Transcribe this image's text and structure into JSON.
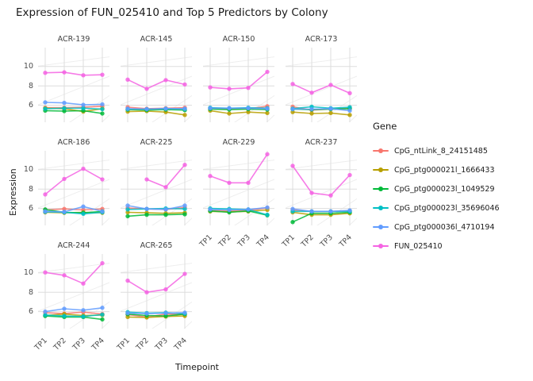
{
  "title": "Expression of FUN_025410 and Top 5 Predictors by Colony",
  "chart_data": {
    "type": "line",
    "faceted": true,
    "facet_layout": {
      "columns": 4,
      "rows": 3
    },
    "xlabel": "Timepoint",
    "ylabel": "Expression",
    "legend_title": "Gene",
    "legend_position": "right",
    "grid": true,
    "x_categories": [
      "TP1",
      "TP2",
      "TP3",
      "TP4"
    ],
    "y_major_ticks": [
      6,
      8,
      10
    ],
    "y_minor_ticks": [
      5,
      7,
      9,
      11
    ],
    "ylim": [
      4.25,
      11.95
    ],
    "series": [
      {
        "name": "CpG_ntLink_8_24151485",
        "color": "#F8766D"
      },
      {
        "name": "CpG_ptg000021l_1666433",
        "color": "#B79F00"
      },
      {
        "name": "CpG_ptg000023l_1049529",
        "color": "#00BA38"
      },
      {
        "name": "CpG_ptg000023l_35696046",
        "color": "#00BFC4"
      },
      {
        "name": "CpG_ptg000036l_4710194",
        "color": "#619CFF"
      },
      {
        "name": "FUN_025410",
        "color": "#F564E3"
      }
    ],
    "facets": [
      {
        "name": "ACR-139",
        "series_values": [
          [
            5.75,
            5.75,
            5.8,
            5.9
          ],
          [
            5.7,
            5.65,
            5.35,
            5.65
          ],
          [
            5.45,
            5.4,
            5.45,
            5.15
          ],
          [
            5.65,
            5.7,
            5.7,
            5.6
          ],
          [
            6.3,
            6.25,
            6.05,
            6.1
          ],
          [
            9.35,
            9.4,
            9.1,
            9.15
          ]
        ]
      },
      {
        "name": "ACR-145",
        "series_values": [
          [
            5.8,
            5.65,
            5.7,
            5.75
          ],
          [
            5.35,
            5.4,
            5.3,
            5.0
          ],
          [
            5.55,
            5.5,
            5.55,
            5.5
          ],
          [
            5.6,
            5.6,
            5.65,
            5.6
          ],
          [
            5.65,
            5.6,
            5.65,
            5.65
          ],
          [
            8.65,
            7.7,
            8.6,
            8.15
          ]
        ]
      },
      {
        "name": "ACR-150",
        "series_values": [
          [
            5.7,
            5.65,
            5.65,
            5.9
          ],
          [
            5.45,
            5.15,
            5.3,
            5.2
          ],
          [
            5.6,
            5.55,
            5.6,
            5.55
          ],
          [
            5.75,
            5.7,
            5.75,
            5.7
          ],
          [
            5.7,
            5.7,
            5.7,
            5.65
          ],
          [
            7.85,
            7.7,
            7.8,
            9.45
          ]
        ]
      },
      {
        "name": "ACR-173",
        "series_values": [
          [
            5.85,
            5.5,
            5.6,
            5.7
          ],
          [
            5.3,
            5.15,
            5.2,
            5.0
          ],
          [
            5.6,
            5.55,
            5.6,
            5.65
          ],
          [
            5.65,
            5.85,
            5.7,
            5.8
          ],
          [
            5.6,
            5.6,
            5.65,
            5.45
          ],
          [
            8.2,
            7.3,
            8.1,
            7.25
          ]
        ]
      },
      {
        "name": "ACR-186",
        "series_values": [
          [
            5.85,
            5.95,
            5.85,
            5.95
          ],
          [
            5.6,
            5.55,
            5.6,
            5.55
          ],
          [
            5.9,
            5.6,
            5.55,
            5.7
          ],
          [
            5.65,
            5.6,
            5.45,
            5.6
          ],
          [
            5.7,
            5.65,
            6.2,
            5.7
          ],
          [
            7.45,
            9.05,
            10.1,
            9.0
          ]
        ]
      },
      {
        "name": "ACR-225",
        "series_values": [
          [
            6.05,
            5.95,
            5.9,
            6.1
          ],
          [
            5.6,
            5.55,
            5.5,
            5.55
          ],
          [
            5.2,
            5.35,
            5.35,
            5.4
          ],
          [
            5.9,
            5.95,
            6.0,
            5.95
          ],
          [
            6.3,
            5.95,
            5.9,
            6.3
          ],
          [
            null,
            9.0,
            8.2,
            10.5
          ]
        ]
      },
      {
        "name": "ACR-229",
        "series_values": [
          [
            5.8,
            5.75,
            5.8,
            6.05
          ],
          [
            5.7,
            5.65,
            5.7,
            5.85
          ],
          [
            5.75,
            5.6,
            5.75,
            5.3
          ],
          [
            6.0,
            5.95,
            5.9,
            5.35
          ],
          [
            5.9,
            5.85,
            5.9,
            6.1
          ],
          [
            9.35,
            8.65,
            8.65,
            11.6
          ]
        ]
      },
      {
        "name": "ACR-237",
        "series_values": [
          [
            5.85,
            5.7,
            5.7,
            5.75
          ],
          [
            5.6,
            5.35,
            5.35,
            5.5
          ],
          [
            4.6,
            5.5,
            5.5,
            5.6
          ],
          [
            5.7,
            5.7,
            5.7,
            5.7
          ],
          [
            5.95,
            5.7,
            5.7,
            5.8
          ],
          [
            10.4,
            7.6,
            7.35,
            9.45
          ]
        ]
      },
      {
        "name": "ACR-244",
        "series_values": [
          [
            5.9,
            5.8,
            5.95,
            5.75
          ],
          [
            5.6,
            5.75,
            5.6,
            5.65
          ],
          [
            5.55,
            5.45,
            5.45,
            5.2
          ],
          [
            5.65,
            5.55,
            5.5,
            5.7
          ],
          [
            6.0,
            6.3,
            6.15,
            6.4
          ],
          [
            10.05,
            9.75,
            8.9,
            11.0
          ]
        ]
      },
      {
        "name": "ACR-265",
        "series_values": [
          [
            5.7,
            5.45,
            5.75,
            5.7
          ],
          [
            5.45,
            5.4,
            5.5,
            5.55
          ],
          [
            5.75,
            5.6,
            5.55,
            5.75
          ],
          [
            5.95,
            5.85,
            5.9,
            5.8
          ],
          [
            5.85,
            5.8,
            5.85,
            5.9
          ],
          [
            9.2,
            8.0,
            8.3,
            9.9
          ]
        ]
      }
    ],
    "style": {
      "major_grid_color": "#DDDDDD",
      "minor_grid_color": "#EEEEEE",
      "line_opacity": 0.85
    }
  }
}
